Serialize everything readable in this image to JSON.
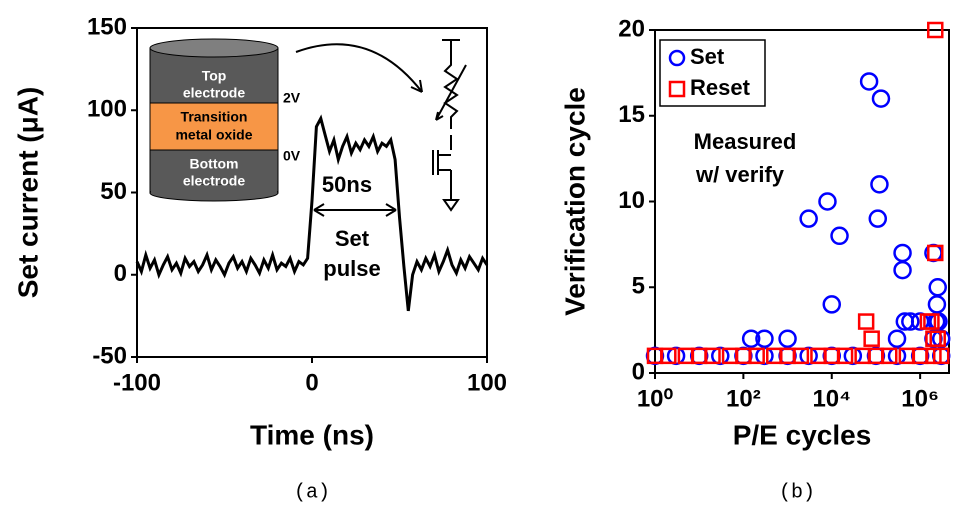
{
  "chart_data": [
    {
      "type": "line",
      "caption": "(a)",
      "x_label": "Time (ns)",
      "y_label": "Set current (μA)",
      "xlim": [
        -100,
        100
      ],
      "xticks": [
        -100,
        0,
        100
      ],
      "ylim": [
        -50,
        150
      ],
      "yticks": [
        -50,
        0,
        50,
        100,
        150
      ],
      "color": "#000000",
      "x": [
        -100,
        -97.5,
        -95,
        -92.5,
        -90,
        -87.5,
        -85,
        -82.5,
        -80,
        -77.5,
        -75,
        -72.5,
        -70,
        -67.5,
        -65,
        -62.5,
        -60,
        -57.5,
        -55,
        -52.5,
        -50,
        -47.5,
        -45,
        -42.5,
        -40,
        -37.5,
        -35,
        -32.5,
        -30,
        -27.5,
        -25,
        -22.5,
        -20,
        -17.5,
        -15,
        -12.5,
        -10,
        -7.5,
        -5,
        -2.5,
        0,
        2.5,
        5,
        7.5,
        10,
        12.5,
        15,
        17.5,
        20,
        22.5,
        25,
        27.5,
        30,
        32.5,
        35,
        37.5,
        40,
        42.5,
        45,
        47.5,
        50,
        52.5,
        55,
        57.5,
        60,
        62.5,
        65,
        67.5,
        70,
        72.5,
        75,
        77.5,
        80,
        82.5,
        85,
        87.5,
        90,
        92.5,
        95,
        97.5,
        100
      ],
      "values": [
        8,
        2,
        12,
        4,
        9,
        0,
        6,
        11,
        3,
        7,
        1,
        10,
        5,
        8,
        2,
        6,
        12,
        3,
        9,
        5,
        0,
        7,
        11,
        4,
        8,
        2,
        10,
        6,
        1,
        9,
        4,
        12,
        3,
        7,
        5,
        10,
        2,
        8,
        6,
        10,
        45,
        90,
        95,
        85,
        75,
        82,
        70,
        78,
        84,
        74,
        80,
        76,
        82,
        78,
        84,
        75,
        80,
        78,
        82,
        70,
        35,
        5,
        -22,
        0,
        8,
        3,
        10,
        5,
        12,
        2,
        8,
        15,
        6,
        1,
        9,
        4,
        11,
        7,
        3,
        10,
        6
      ],
      "annotations": {
        "pulse_width": "50ns",
        "pulse": [
          "Set",
          "pulse"
        ],
        "top_electrode": [
          "Top",
          "electrode"
        ],
        "oxide": [
          "Transition",
          "metal oxide"
        ],
        "bottom_electrode": [
          "Bottom",
          "electrode"
        ],
        "top_voltage": "2V",
        "bottom_voltage": "0V"
      }
    },
    {
      "type": "scatter",
      "caption": "(b)",
      "x_label": "P/E cycles",
      "y_label": "Verification cycle",
      "xscale": "log",
      "xlim": [
        1,
        4500000
      ],
      "xticks": [
        {
          "value": 1,
          "label": "10⁰"
        },
        {
          "value": 100,
          "label": "10²"
        },
        {
          "value": 10000,
          "label": "10⁴"
        },
        {
          "value": 1000000,
          "label": "10⁶"
        }
      ],
      "ylim": [
        0,
        20
      ],
      "yticks": [
        0,
        5,
        10,
        15,
        20
      ],
      "legend": "upper left",
      "annotation": [
        "Measured",
        "w/ verify"
      ],
      "series": [
        {
          "name": "Set",
          "color": "#0000ff",
          "marker": "circle",
          "x": [
            1,
            3,
            10,
            30,
            100,
            300,
            1000,
            3000,
            10000,
            30000,
            100000,
            300000,
            1000000,
            3000000,
            150,
            300,
            1000,
            3000,
            8000,
            15000,
            10000,
            70000,
            130000,
            120000,
            110000,
            400000,
            400000,
            300000,
            450000,
            600000,
            1000000,
            2000000,
            2500000,
            2400000,
            2300000,
            2600000,
            2000000,
            3000000
          ],
          "values": [
            1,
            1,
            1,
            1,
            1,
            1,
            1,
            1,
            1,
            1,
            1,
            1,
            1,
            1,
            2,
            2,
            2,
            9,
            10,
            8,
            4,
            17,
            16,
            11,
            9,
            7,
            6,
            2,
            3,
            3,
            3,
            7,
            5,
            4,
            3,
            3,
            2,
            2
          ]
        },
        {
          "name": "Reset",
          "color": "#ff0000",
          "marker": "square",
          "x": [
            1,
            2,
            5,
            10,
            20,
            50,
            100,
            200,
            500,
            1000,
            2000,
            5000,
            10000,
            20000,
            50000,
            100000,
            200000,
            500000,
            1000000,
            2000000,
            3000000,
            60000,
            80000,
            1800000,
            2200000,
            2200000,
            2000000,
            2500000,
            1500000
          ],
          "values": [
            1,
            1,
            1,
            1,
            1,
            1,
            1,
            1,
            1,
            1,
            1,
            1,
            1,
            1,
            1,
            1,
            1,
            1,
            1,
            1,
            1,
            3,
            2,
            3,
            7,
            20,
            2,
            2,
            3
          ]
        }
      ]
    }
  ]
}
